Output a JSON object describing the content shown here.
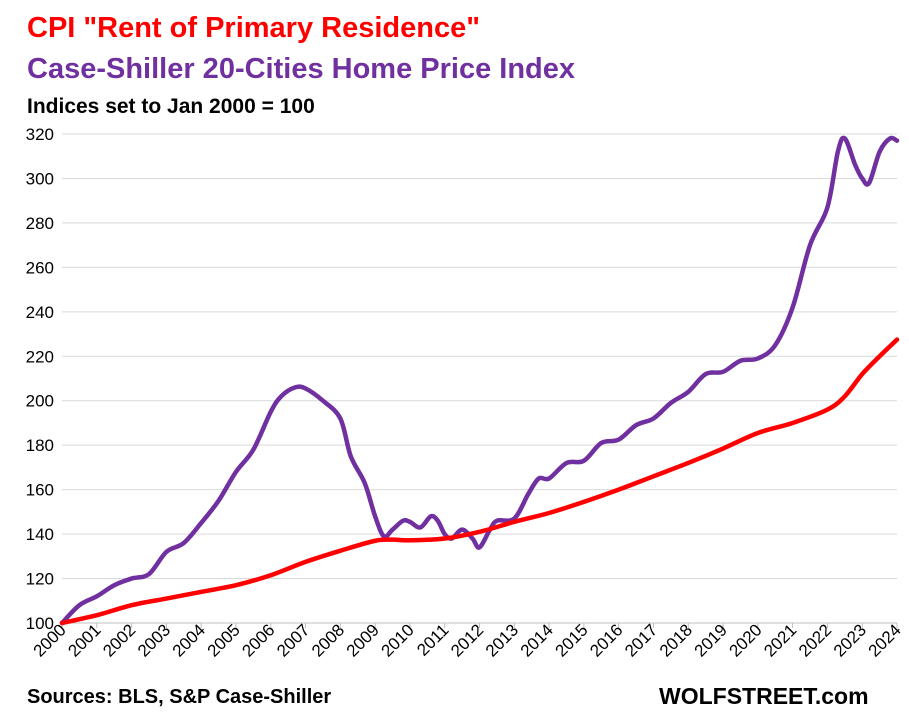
{
  "chart_data": {
    "type": "line",
    "title": "CPI \"Rent of Primary Residence\"",
    "subtitle": "Case-Shiller 20-Cities Home Price Index",
    "note": "Indices set to Jan 2000 = 100",
    "source": "Sources: BLS, S&P Case-Shiller",
    "brand": "WOLFSTREET.com",
    "ylim": [
      100,
      320
    ],
    "xlim": [
      2000,
      2024
    ],
    "yticks": [
      "100",
      "120",
      "140",
      "160",
      "180",
      "200",
      "220",
      "240",
      "260",
      "280",
      "300",
      "320"
    ],
    "xticks": [
      "2000",
      "2001",
      "2002",
      "2003",
      "2004",
      "2005",
      "2006",
      "2007",
      "2008",
      "2009",
      "2010",
      "2011",
      "2012",
      "2013",
      "2014",
      "2015",
      "2016",
      "2017",
      "2018",
      "2019",
      "2020",
      "2021",
      "2022",
      "2023",
      "2024"
    ],
    "grid": true,
    "series": [
      {
        "name": "CPI \"Rent of Primary Residence\"",
        "color": "#ff0000",
        "points": [
          [
            2000,
            100
          ],
          [
            2001,
            103.5
          ],
          [
            2002,
            108
          ],
          [
            2003,
            111
          ],
          [
            2004,
            114
          ],
          [
            2005,
            117
          ],
          [
            2006,
            121.5
          ],
          [
            2007,
            127.5
          ],
          [
            2008,
            132.5
          ],
          [
            2009,
            137
          ],
          [
            2009.5,
            137.5
          ],
          [
            2010,
            137.2
          ],
          [
            2011,
            138
          ],
          [
            2012,
            141
          ],
          [
            2013,
            145.5
          ],
          [
            2014,
            149.5
          ],
          [
            2015,
            154.5
          ],
          [
            2016,
            160
          ],
          [
            2017,
            166
          ],
          [
            2018,
            172
          ],
          [
            2019,
            178.5
          ],
          [
            2020,
            185.5
          ],
          [
            2021,
            190
          ],
          [
            2022,
            196
          ],
          [
            2022.5,
            202
          ],
          [
            2023,
            212
          ],
          [
            2023.5,
            220
          ],
          [
            2024,
            227.5
          ]
        ]
      },
      {
        "name": "Case-Shiller 20-Cities Home Price Index",
        "color": "#7030a0",
        "points": [
          [
            2000,
            100
          ],
          [
            2000.5,
            108
          ],
          [
            2001,
            112
          ],
          [
            2001.5,
            117
          ],
          [
            2002,
            120
          ],
          [
            2002.5,
            122
          ],
          [
            2003,
            132
          ],
          [
            2003.5,
            136
          ],
          [
            2004,
            145
          ],
          [
            2004.5,
            155
          ],
          [
            2005,
            168
          ],
          [
            2005.5,
            178
          ],
          [
            2006,
            195
          ],
          [
            2006.3,
            202
          ],
          [
            2006.7,
            206
          ],
          [
            2007,
            205.5
          ],
          [
            2007.5,
            200
          ],
          [
            2008,
            192
          ],
          [
            2008.3,
            175
          ],
          [
            2008.7,
            163
          ],
          [
            2009,
            148
          ],
          [
            2009.25,
            139
          ],
          [
            2009.5,
            142
          ],
          [
            2009.8,
            146
          ],
          [
            2010,
            145.5
          ],
          [
            2010.3,
            143
          ],
          [
            2010.6,
            148
          ],
          [
            2010.8,
            146
          ],
          [
            2011,
            140
          ],
          [
            2011.2,
            138
          ],
          [
            2011.5,
            142
          ],
          [
            2011.8,
            138
          ],
          [
            2012,
            134
          ],
          [
            2012.3,
            142
          ],
          [
            2012.5,
            146
          ],
          [
            2013,
            147
          ],
          [
            2013.4,
            158
          ],
          [
            2013.7,
            165
          ],
          [
            2014,
            165
          ],
          [
            2014.5,
            172
          ],
          [
            2015,
            173
          ],
          [
            2015.5,
            181
          ],
          [
            2016,
            182.5
          ],
          [
            2016.5,
            189
          ],
          [
            2017,
            192
          ],
          [
            2017.5,
            199
          ],
          [
            2018,
            204
          ],
          [
            2018.5,
            212
          ],
          [
            2019,
            213
          ],
          [
            2019.5,
            218
          ],
          [
            2020,
            219
          ],
          [
            2020.5,
            225
          ],
          [
            2021,
            242
          ],
          [
            2021.5,
            270
          ],
          [
            2022,
            287
          ],
          [
            2022.3,
            312
          ],
          [
            2022.5,
            318
          ],
          [
            2022.8,
            306
          ],
          [
            2023,
            300
          ],
          [
            2023.2,
            298
          ],
          [
            2023.5,
            312
          ],
          [
            2023.8,
            318
          ],
          [
            2024,
            317
          ]
        ]
      }
    ]
  }
}
